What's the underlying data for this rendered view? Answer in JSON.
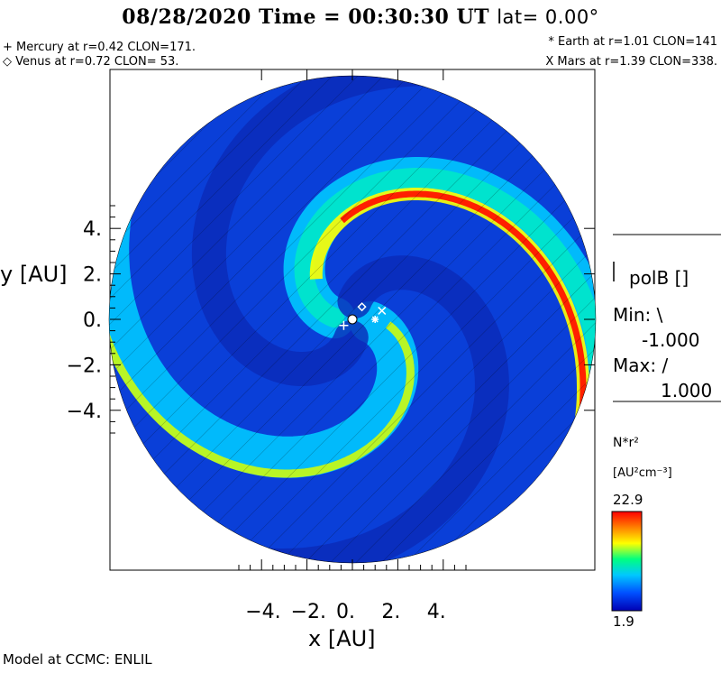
{
  "header": {
    "date_time": "08/28/2020 Time = 00:30:30 UT",
    "lat": "lat= 0.00°"
  },
  "planets": {
    "mercury": "+ Mercury at r=0.42 CLON=171.",
    "venus": "◇ Venus at r=0.72 CLON= 53.",
    "earth": "* Earth at  r=1.01 CLON=141",
    "mars": "X Mars at r=1.39 CLON=338."
  },
  "footer": {
    "credit": "Model at CCMC: ENLIL"
  },
  "side_panel": {
    "polb_label": "polB []",
    "min_label": "Min: \\",
    "min_value": "-1.000",
    "max_label": "Max: /",
    "max_value": "1.000",
    "colorbar_title": "N*r²",
    "colorbar_units": "[AU²cm⁻³]",
    "colorbar_max": "22.9",
    "colorbar_min": "1.9"
  },
  "chart_data": {
    "type": "heatmap",
    "title": "08/28/2020 Time = 00:30:30 UT",
    "xlabel": "x [AU]",
    "ylabel": "y [AU]",
    "xlim": [
      -5.5,
      5.5
    ],
    "ylim": [
      -5.5,
      5.5
    ],
    "x_ticks": [
      -4,
      -2,
      0,
      2,
      4
    ],
    "y_ticks": [
      -4,
      -2,
      0,
      2,
      4
    ],
    "x_tick_labels": [
      "−4.",
      "−2.",
      "0.",
      "2.",
      "4."
    ],
    "y_tick_labels": [
      "−4.",
      "−2.",
      "0.",
      "2.",
      "4."
    ],
    "domain_radius_au": 5.5,
    "colorbar_range": [
      1.9,
      22.9
    ],
    "colormap": [
      "#0000b4",
      "#0050ff",
      "#00c8ff",
      "#00ff80",
      "#ffff00",
      "#ff8000",
      "#ff0000"
    ],
    "planet_positions": [
      {
        "name": "Sun",
        "x": 0.0,
        "y": 0.0,
        "marker": "dot"
      },
      {
        "name": "Mercury",
        "x": -0.38,
        "y": -0.27,
        "marker": "+"
      },
      {
        "name": "Venus",
        "x": 0.42,
        "y": 0.55,
        "marker": "diamond"
      },
      {
        "name": "Earth",
        "x": 1.0,
        "y": 0.0,
        "marker": "*"
      },
      {
        "name": "Mars",
        "x": 1.3,
        "y": 0.38,
        "marker": "x"
      }
    ]
  }
}
